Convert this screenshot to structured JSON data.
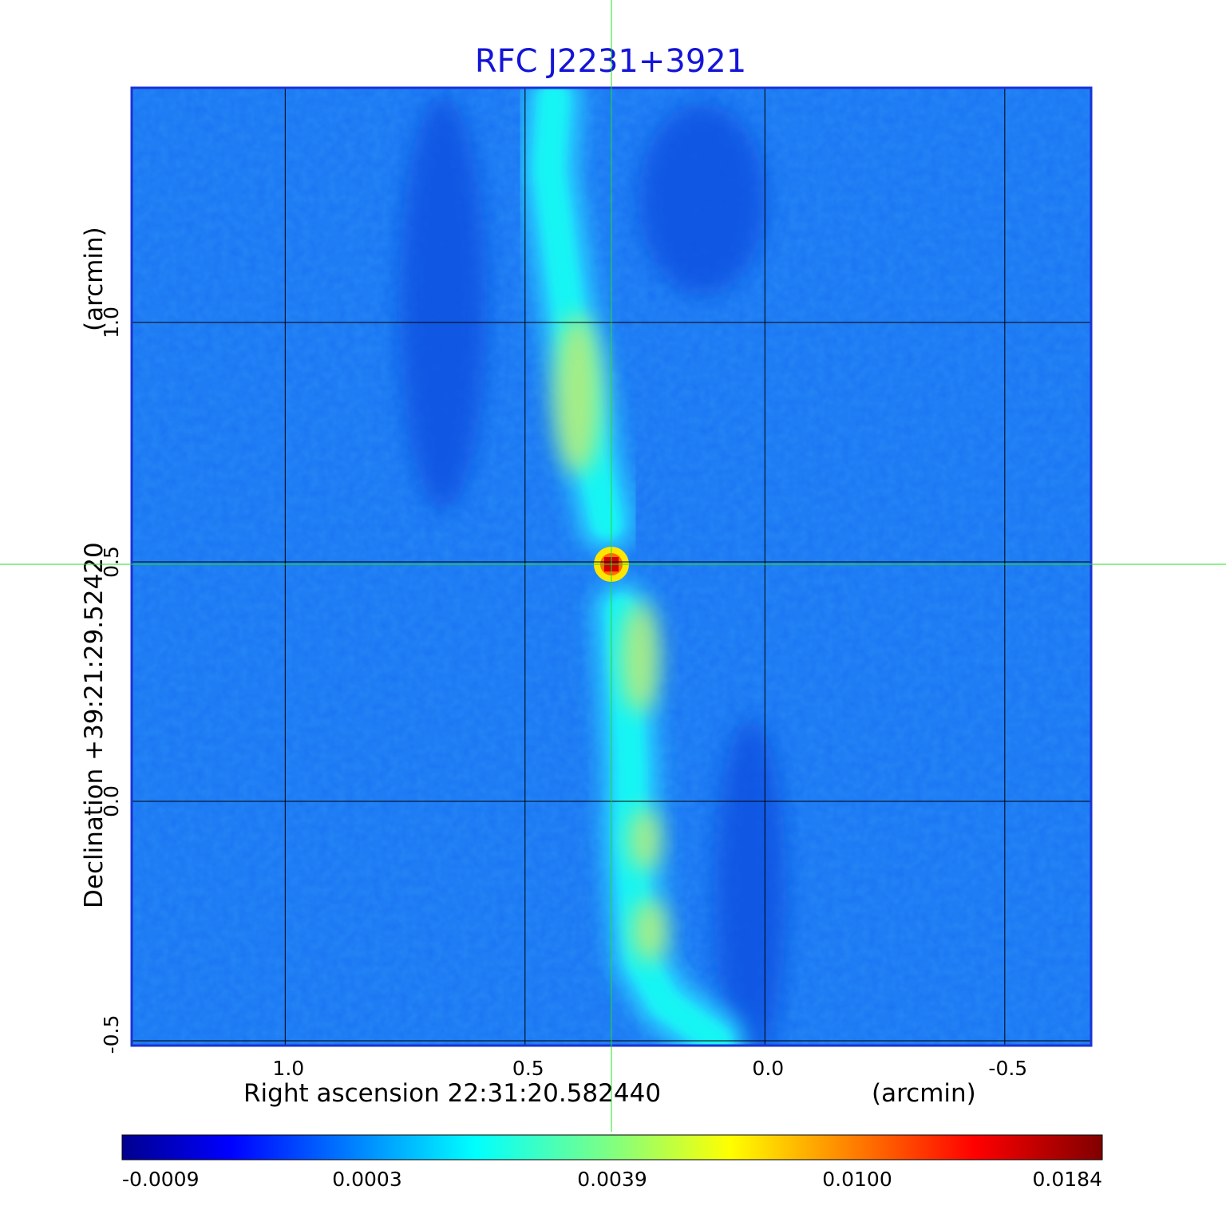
{
  "chart_data": {
    "type": "heatmap",
    "title": "RFC J2231+3921",
    "xlabel": "Right ascension  22:31:20.582440",
    "xlabel_unit": "(arcmin)",
    "ylabel": "Declination  +39:21:29.52420",
    "ylabel_unit": "(arcmin)",
    "x_ticks": [
      "1.0",
      "0.5",
      "0.0",
      "-0.5"
    ],
    "x_tick_values": [
      1.0,
      0.5,
      0.0,
      -0.5
    ],
    "xlim": [
      1.32,
      -0.68
    ],
    "y_ticks": [
      "-0.5",
      "0.0",
      "0.5",
      "1.0"
    ],
    "y_tick_values": [
      -0.5,
      0.0,
      0.5,
      1.0
    ],
    "ylim": [
      -0.51,
      1.49
    ],
    "grid": true,
    "crosshair": {
      "x": 0.32,
      "y": 0.495
    },
    "colormap": "jet",
    "colorbar_ticks": [
      "-0.0009",
      "0.0003",
      "0.0039",
      "0.0100",
      "0.0184"
    ],
    "colorbar_values": [
      -0.0009,
      0.0003,
      0.0039,
      0.01,
      0.0184
    ],
    "features": {
      "core": {
        "x": 0.32,
        "y": 0.495,
        "peak": 0.0184
      },
      "north_jet": [
        [
          0.33,
          0.58
        ],
        [
          0.36,
          0.72
        ],
        [
          0.38,
          0.86
        ],
        [
          0.41,
          1.02
        ],
        [
          0.43,
          1.17
        ],
        [
          0.45,
          1.32
        ],
        [
          0.44,
          1.47
        ]
      ],
      "south_jet": [
        [
          0.3,
          0.4
        ],
        [
          0.29,
          0.25
        ],
        [
          0.28,
          0.07
        ],
        [
          0.28,
          -0.08
        ],
        [
          0.27,
          -0.22
        ],
        [
          0.26,
          -0.33
        ],
        [
          0.21,
          -0.42
        ],
        [
          0.1,
          -0.5
        ]
      ]
    }
  }
}
